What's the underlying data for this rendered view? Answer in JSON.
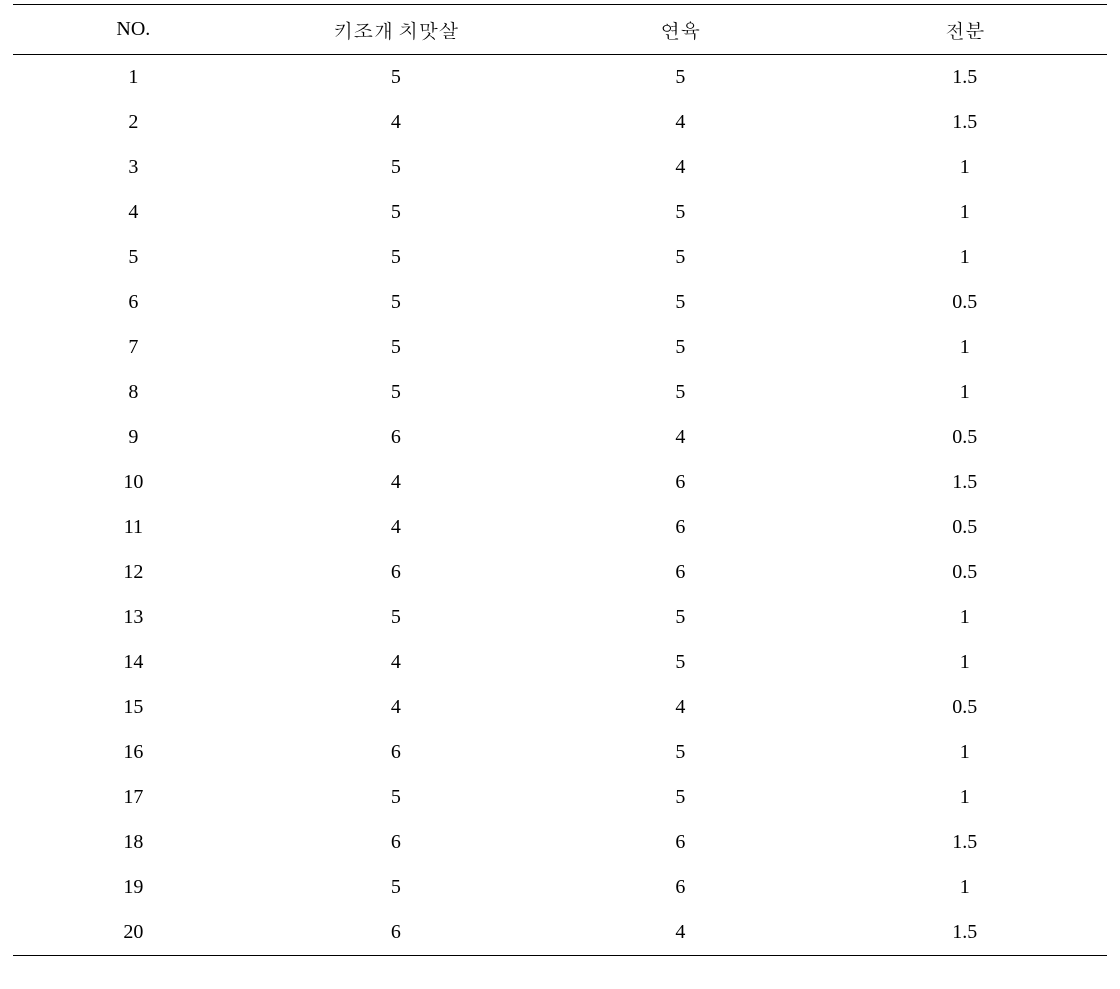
{
  "table": {
    "columns": [
      "NO.",
      "키조개 치맛살",
      "연육",
      "전분"
    ],
    "rows": [
      [
        "1",
        "5",
        "5",
        "1.5"
      ],
      [
        "2",
        "4",
        "4",
        "1.5"
      ],
      [
        "3",
        "5",
        "4",
        "1"
      ],
      [
        "4",
        "5",
        "5",
        "1"
      ],
      [
        "5",
        "5",
        "5",
        "1"
      ],
      [
        "6",
        "5",
        "5",
        "0.5"
      ],
      [
        "7",
        "5",
        "5",
        "1"
      ],
      [
        "8",
        "5",
        "5",
        "1"
      ],
      [
        "9",
        "6",
        "4",
        "0.5"
      ],
      [
        "10",
        "4",
        "6",
        "1.5"
      ],
      [
        "11",
        "4",
        "6",
        "0.5"
      ],
      [
        "12",
        "6",
        "6",
        "0.5"
      ],
      [
        "13",
        "5",
        "5",
        "1"
      ],
      [
        "14",
        "4",
        "5",
        "1"
      ],
      [
        "15",
        "4",
        "4",
        "0.5"
      ],
      [
        "16",
        "6",
        "5",
        "1"
      ],
      [
        "17",
        "5",
        "5",
        "1"
      ],
      [
        "18",
        "6",
        "6",
        "1.5"
      ],
      [
        "19",
        "5",
        "6",
        "1"
      ],
      [
        "20",
        "6",
        "4",
        "1.5"
      ]
    ],
    "colors": {
      "text": "#000000",
      "background": "#ffffff",
      "border_top": "#000000",
      "border_bottom": "#000000"
    },
    "font": {
      "family": "Times New Roman / Batang",
      "size": 20,
      "weight": "normal"
    },
    "layout": {
      "column_widths_pct": [
        22,
        26,
        26,
        26
      ],
      "cell_padding_y": 11,
      "header_padding_y": 10,
      "border_top_width": 1.5,
      "header_underline_width": 1,
      "border_bottom_width": 1.5
    }
  }
}
